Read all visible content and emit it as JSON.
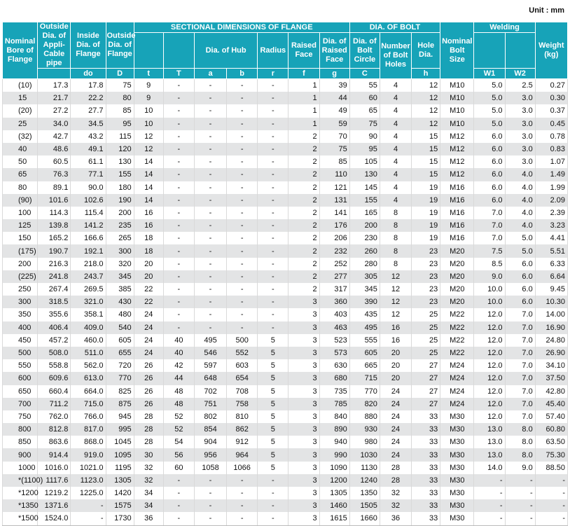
{
  "unit": "Unit : mm",
  "headers": {
    "nominal_bore": "Nominal Bore of Flange",
    "outside_dia_pipe": "Outside Dia. of Appli-Cable pipe",
    "inside_dia": "Inside Dia. of Flange",
    "inside_dia_sym": "do",
    "outside_dia": "Outside Dia. of Flange",
    "outside_dia_sym": "D",
    "sectional": "SECTIONAL DIMENSIONS OF FLANGE",
    "t": "t",
    "T": "T",
    "dia_hub": "Dia. of Hub",
    "a": "a",
    "b": "b",
    "radius": "Radius",
    "r": "r",
    "raised_face": "Raised Face",
    "f": "f",
    "dia_raised_face": "Dia. of Raised Face",
    "g": "g",
    "dia_bolt": "DIA. OF BOLT",
    "dia_bolt_circle": "Dia. of Bolt Circle",
    "C": "C",
    "num_bolt_holes": "Number of Bolt Holes",
    "hole_dia": "Hole Dia.",
    "h": "h",
    "nominal_bolt_size": "Nominal Bolt Size",
    "welding": "Welding",
    "w1": "W1",
    "w2": "W2",
    "weight": "Weight (kg)"
  },
  "rows": [
    [
      "(10)",
      "17.3",
      "17.8",
      "75",
      "9",
      "-",
      "-",
      "-",
      "-",
      "1",
      "39",
      "55",
      "4",
      "12",
      "M10",
      "5.0",
      "2.5",
      "0.27"
    ],
    [
      "15",
      "21.7",
      "22.2",
      "80",
      "9",
      "-",
      "-",
      "-",
      "-",
      "1",
      "44",
      "60",
      "4",
      "12",
      "M10",
      "5.0",
      "3.0",
      "0.30"
    ],
    [
      "(20)",
      "27.2",
      "27.7",
      "85",
      "10",
      "-",
      "-",
      "-",
      "-",
      "1",
      "49",
      "65",
      "4",
      "12",
      "M10",
      "5.0",
      "3.0",
      "0.37"
    ],
    [
      "25",
      "34.0",
      "34.5",
      "95",
      "10",
      "-",
      "-",
      "-",
      "-",
      "1",
      "59",
      "75",
      "4",
      "12",
      "M10",
      "5.0",
      "3.0",
      "0.45"
    ],
    [
      "(32)",
      "42.7",
      "43.2",
      "115",
      "12",
      "-",
      "-",
      "-",
      "-",
      "2",
      "70",
      "90",
      "4",
      "15",
      "M12",
      "6.0",
      "3.0",
      "0.78"
    ],
    [
      "40",
      "48.6",
      "49.1",
      "120",
      "12",
      "-",
      "-",
      "-",
      "-",
      "2",
      "75",
      "95",
      "4",
      "15",
      "M12",
      "6.0",
      "3.0",
      "0.83"
    ],
    [
      "50",
      "60.5",
      "61.1",
      "130",
      "14",
      "-",
      "-",
      "-",
      "-",
      "2",
      "85",
      "105",
      "4",
      "15",
      "M12",
      "6.0",
      "3.0",
      "1.07"
    ],
    [
      "65",
      "76.3",
      "77.1",
      "155",
      "14",
      "-",
      "-",
      "-",
      "-",
      "2",
      "110",
      "130",
      "4",
      "15",
      "M12",
      "6.0",
      "4.0",
      "1.49"
    ],
    [
      "80",
      "89.1",
      "90.0",
      "180",
      "14",
      "-",
      "-",
      "-",
      "-",
      "2",
      "121",
      "145",
      "4",
      "19",
      "M16",
      "6.0",
      "4.0",
      "1.99"
    ],
    [
      "(90)",
      "101.6",
      "102.6",
      "190",
      "14",
      "-",
      "-",
      "-",
      "-",
      "2",
      "131",
      "155",
      "4",
      "19",
      "M16",
      "6.0",
      "4.0",
      "2.09"
    ],
    [
      "100",
      "114.3",
      "115.4",
      "200",
      "16",
      "-",
      "-",
      "-",
      "-",
      "2",
      "141",
      "165",
      "8",
      "19",
      "M16",
      "7.0",
      "4.0",
      "2.39"
    ],
    [
      "125",
      "139.8",
      "141.2",
      "235",
      "16",
      "-",
      "-",
      "-",
      "-",
      "2",
      "176",
      "200",
      "8",
      "19",
      "M16",
      "7.0",
      "4.0",
      "3.23"
    ],
    [
      "150",
      "165.2",
      "166.6",
      "265",
      "18",
      "-",
      "-",
      "-",
      "-",
      "2",
      "206",
      "230",
      "8",
      "19",
      "M16",
      "7.0",
      "5.0",
      "4.41"
    ],
    [
      "(175)",
      "190.7",
      "192.1",
      "300",
      "18",
      "-",
      "-",
      "-",
      "-",
      "2",
      "232",
      "260",
      "8",
      "23",
      "M20",
      "7.5",
      "5.0",
      "5.51"
    ],
    [
      "200",
      "216.3",
      "218.0",
      "320",
      "20",
      "-",
      "-",
      "-",
      "-",
      "2",
      "252",
      "280",
      "8",
      "23",
      "M20",
      "8.5",
      "6.0",
      "6.33"
    ],
    [
      "(225)",
      "241.8",
      "243.7",
      "345",
      "20",
      "-",
      "-",
      "-",
      "-",
      "2",
      "277",
      "305",
      "12",
      "23",
      "M20",
      "9.0",
      "6.0",
      "6.64"
    ],
    [
      "250",
      "267.4",
      "269.5",
      "385",
      "22",
      "-",
      "-",
      "-",
      "-",
      "2",
      "317",
      "345",
      "12",
      "23",
      "M20",
      "10.0",
      "6.0",
      "9.45"
    ],
    [
      "300",
      "318.5",
      "321.0",
      "430",
      "22",
      "-",
      "-",
      "-",
      "-",
      "3",
      "360",
      "390",
      "12",
      "23",
      "M20",
      "10.0",
      "6.0",
      "10.30"
    ],
    [
      "350",
      "355.6",
      "358.1",
      "480",
      "24",
      "-",
      "-",
      "-",
      "-",
      "3",
      "403",
      "435",
      "12",
      "25",
      "M22",
      "12.0",
      "7.0",
      "14.00"
    ],
    [
      "400",
      "406.4",
      "409.0",
      "540",
      "24",
      "-",
      "-",
      "-",
      "-",
      "3",
      "463",
      "495",
      "16",
      "25",
      "M22",
      "12.0",
      "7.0",
      "16.90"
    ],
    [
      "450",
      "457.2",
      "460.0",
      "605",
      "24",
      "40",
      "495",
      "500",
      "5",
      "3",
      "523",
      "555",
      "16",
      "25",
      "M22",
      "12.0",
      "7.0",
      "24.80"
    ],
    [
      "500",
      "508.0",
      "511.0",
      "655",
      "24",
      "40",
      "546",
      "552",
      "5",
      "3",
      "573",
      "605",
      "20",
      "25",
      "M22",
      "12.0",
      "7.0",
      "26.90"
    ],
    [
      "550",
      "558.8",
      "562.0",
      "720",
      "26",
      "42",
      "597",
      "603",
      "5",
      "3",
      "630",
      "665",
      "20",
      "27",
      "M24",
      "12.0",
      "7.0",
      "34.10"
    ],
    [
      "600",
      "609.6",
      "613.0",
      "770",
      "26",
      "44",
      "648",
      "654",
      "5",
      "3",
      "680",
      "715",
      "20",
      "27",
      "M24",
      "12.0",
      "7.0",
      "37.50"
    ],
    [
      "650",
      "660.4",
      "664.0",
      "825",
      "26",
      "48",
      "702",
      "708",
      "5",
      "3",
      "735",
      "770",
      "24",
      "27",
      "M24",
      "12.0",
      "7.0",
      "42.80"
    ],
    [
      "700",
      "711.2",
      "715.0",
      "875",
      "26",
      "48",
      "751",
      "758",
      "5",
      "3",
      "785",
      "820",
      "24",
      "27",
      "M24",
      "12.0",
      "7.0",
      "45.40"
    ],
    [
      "750",
      "762.0",
      "766.0",
      "945",
      "28",
      "52",
      "802",
      "810",
      "5",
      "3",
      "840",
      "880",
      "24",
      "33",
      "M30",
      "12.0",
      "7.0",
      "57.40"
    ],
    [
      "800",
      "812.8",
      "817.0",
      "995",
      "28",
      "52",
      "854",
      "862",
      "5",
      "3",
      "890",
      "930",
      "24",
      "33",
      "M30",
      "13.0",
      "8.0",
      "60.80"
    ],
    [
      "850",
      "863.6",
      "868.0",
      "1045",
      "28",
      "54",
      "904",
      "912",
      "5",
      "3",
      "940",
      "980",
      "24",
      "33",
      "M30",
      "13.0",
      "8.0",
      "63.50"
    ],
    [
      "900",
      "914.4",
      "919.0",
      "1095",
      "30",
      "56",
      "956",
      "964",
      "5",
      "3",
      "990",
      "1030",
      "24",
      "33",
      "M30",
      "13.0",
      "8.0",
      "75.30"
    ],
    [
      "1000",
      "1016.0",
      "1021.0",
      "1195",
      "32",
      "60",
      "1058",
      "1066",
      "5",
      "3",
      "1090",
      "1130",
      "28",
      "33",
      "M30",
      "14.0",
      "9.0",
      "88.50"
    ],
    [
      "*(1100)",
      "1117.6",
      "1123.0",
      "1305",
      "32",
      "-",
      "-",
      "-",
      "-",
      "3",
      "1200",
      "1240",
      "28",
      "33",
      "M30",
      "-",
      "-",
      "-"
    ],
    [
      "*1200",
      "1219.2",
      "1225.0",
      "1420",
      "34",
      "-",
      "-",
      "-",
      "-",
      "3",
      "1305",
      "1350",
      "32",
      "33",
      "M30",
      "-",
      "-",
      "-"
    ],
    [
      "*1350",
      "1371.6",
      "-",
      "1575",
      "34",
      "-",
      "-",
      "-",
      "-",
      "3",
      "1460",
      "1505",
      "32",
      "33",
      "M30",
      "-",
      "-",
      "-"
    ],
    [
      "*1500",
      "1524.0",
      "-",
      "1730",
      "36",
      "-",
      "-",
      "-",
      "-",
      "3",
      "1615",
      "1660",
      "36",
      "33",
      "M30",
      "-",
      "-",
      "-"
    ]
  ],
  "colors": {
    "header_bg": "#17a3b8",
    "stripe": "#e3e4e5"
  }
}
